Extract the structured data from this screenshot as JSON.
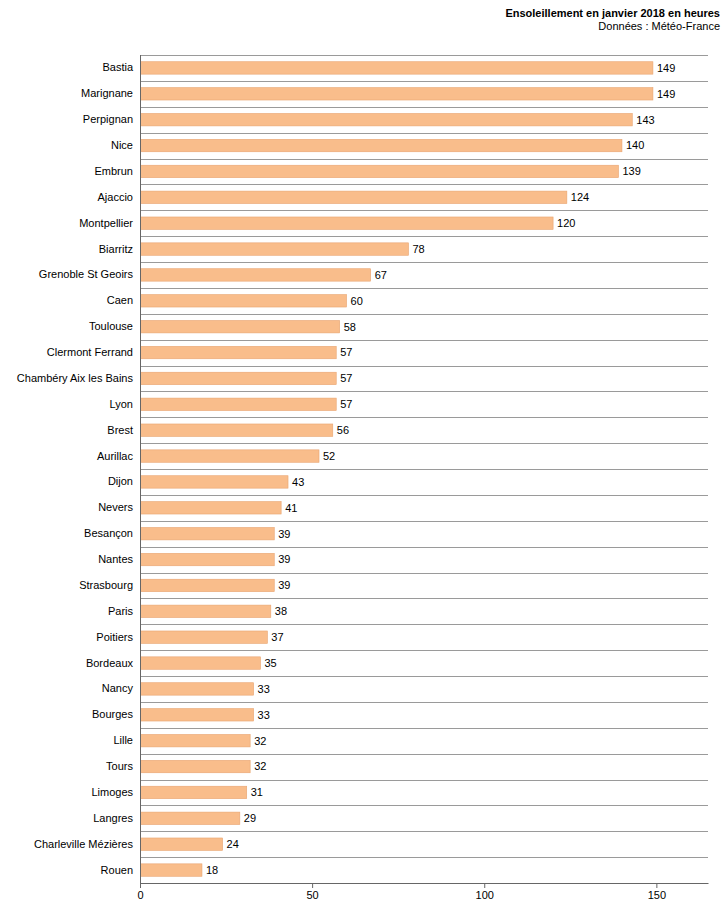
{
  "chart_data": {
    "type": "bar",
    "orientation": "horizontal",
    "title": "Ensoleillement en janvier 2018 en heures",
    "subtitle": "Données : Météo-France",
    "categories": [
      "Bastia",
      "Marignane",
      "Perpignan",
      "Nice",
      "Embrun",
      "Ajaccio",
      "Montpellier",
      "Biarritz",
      "Grenoble St Geoirs",
      "Caen",
      "Toulouse",
      "Clermont Ferrand",
      "Chambéry Aix les Bains",
      "Lyon",
      "Brest",
      "Aurillac",
      "Dijon",
      "Nevers",
      "Besançon",
      "Nantes",
      "Strasbourg",
      "Paris",
      "Poitiers",
      "Bordeaux",
      "Nancy",
      "Bourges",
      "Lille",
      "Tours",
      "Limoges",
      "Langres",
      "Charleville Mézières",
      "Rouen"
    ],
    "values": [
      149,
      149,
      143,
      140,
      139,
      124,
      120,
      78,
      67,
      60,
      58,
      57,
      57,
      57,
      56,
      52,
      43,
      41,
      39,
      39,
      39,
      38,
      37,
      35,
      33,
      33,
      32,
      32,
      31,
      29,
      24,
      18
    ],
    "color": "#f9bd8b",
    "xlim": [
      0,
      165
    ],
    "xticks": [
      0,
      50,
      100,
      150
    ],
    "grid": true,
    "data_labels": true
  }
}
